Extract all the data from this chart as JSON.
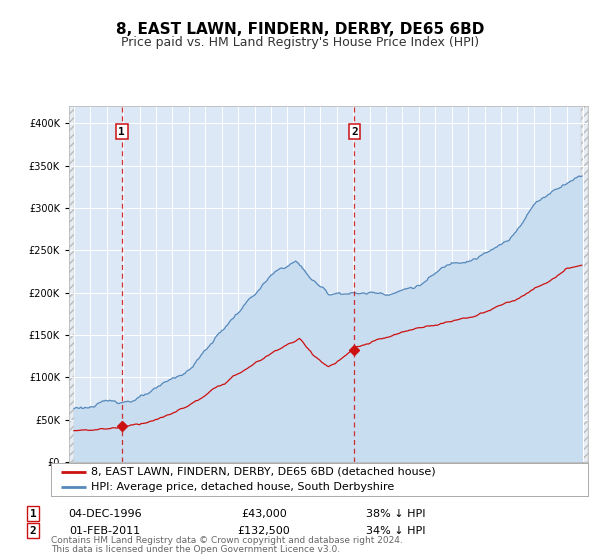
{
  "title": "8, EAST LAWN, FINDERN, DERBY, DE65 6BD",
  "subtitle": "Price paid vs. HM Land Registry's House Price Index (HPI)",
  "legend_label_red": "8, EAST LAWN, FINDERN, DERBY, DE65 6BD (detached house)",
  "legend_label_blue": "HPI: Average price, detached house, South Derbyshire",
  "footnote1": "Contains HM Land Registry data © Crown copyright and database right 2024.",
  "footnote2": "This data is licensed under the Open Government Licence v3.0.",
  "marker1_date": "04-DEC-1996",
  "marker1_price": "£43,000",
  "marker1_pct": "38% ↓ HPI",
  "marker1_year": 1996.917,
  "marker1_value": 43000,
  "marker2_date": "01-FEB-2011",
  "marker2_price": "£132,500",
  "marker2_pct": "34% ↓ HPI",
  "marker2_year": 2011.083,
  "marker2_value": 132500,
  "xlim_start": 1993.7,
  "xlim_end": 2025.3,
  "ylim_min": 0,
  "ylim_max": 420000,
  "fig_bg": "#ffffff",
  "plot_bg": "#dce8f5",
  "red_color": "#cc1111",
  "blue_color": "#5588bb",
  "blue_fill": "#c8ddf0",
  "grid_color": "#ffffff",
  "hatch_color": "#cccccc",
  "title_fontsize": 11,
  "subtitle_fontsize": 9,
  "tick_fontsize": 7,
  "legend_fontsize": 8,
  "table_fontsize": 8,
  "footnote_fontsize": 6.5
}
